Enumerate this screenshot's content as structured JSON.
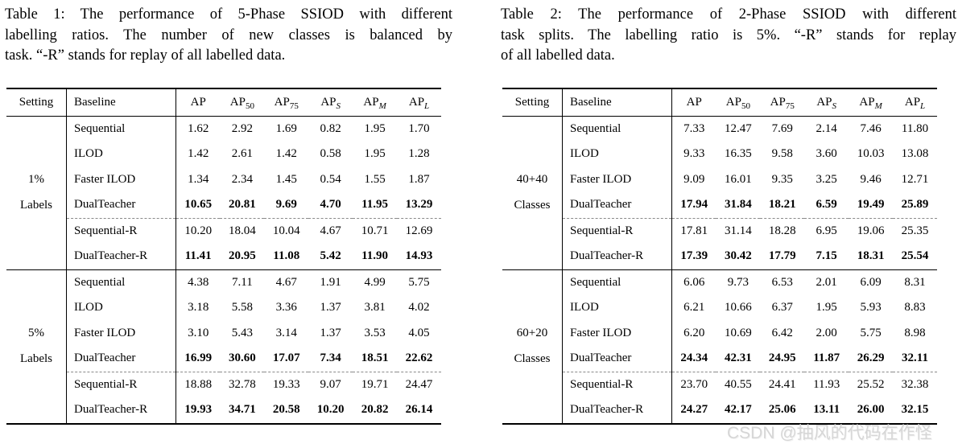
{
  "watermark": "CSDN @抽风的代码在作怪",
  "tables": [
    {
      "caption_lines": [
        "Table 1: The performance of 5-Phase SSIOD with different",
        "labelling ratios. The number of new classes is balanced by",
        "task. “-R” stands for replay of all labelled data."
      ],
      "columns": {
        "setting": "Setting",
        "baseline": "Baseline",
        "metrics": [
          {
            "base": "AP",
            "sub": ""
          },
          {
            "base": "AP",
            "sub": "50"
          },
          {
            "base": "AP",
            "sub": "75"
          },
          {
            "base": "AP",
            "sub": "S"
          },
          {
            "base": "AP",
            "sub": "M"
          },
          {
            "base": "AP",
            "sub": "L"
          }
        ]
      },
      "groups": [
        {
          "setting": [
            "1%",
            "Labels"
          ],
          "rows": [
            {
              "label": "Sequential",
              "bold": false,
              "values": [
                "1.62",
                "2.92",
                "1.69",
                "0.82",
                "1.95",
                "1.70"
              ]
            },
            {
              "label": "ILOD",
              "bold": false,
              "values": [
                "1.42",
                "2.61",
                "1.42",
                "0.58",
                "1.95",
                "1.28"
              ]
            },
            {
              "label": "Faster ILOD",
              "bold": false,
              "values": [
                "1.34",
                "2.34",
                "1.45",
                "0.54",
                "1.55",
                "1.87"
              ]
            },
            {
              "label": "DualTeacher",
              "bold": true,
              "values": [
                "10.65",
                "20.81",
                "9.69",
                "4.70",
                "11.95",
                "13.29"
              ]
            },
            {
              "label": "Sequential-R",
              "bold": false,
              "values": [
                "10.20",
                "18.04",
                "10.04",
                "4.67",
                "10.71",
                "12.69"
              ]
            },
            {
              "label": "DualTeacher-R",
              "bold": true,
              "values": [
                "11.41",
                "20.95",
                "11.08",
                "5.42",
                "11.90",
                "14.93"
              ]
            }
          ]
        },
        {
          "setting": [
            "5%",
            "Labels"
          ],
          "rows": [
            {
              "label": "Sequential",
              "bold": false,
              "values": [
                "4.38",
                "7.11",
                "4.67",
                "1.91",
                "4.99",
                "5.75"
              ]
            },
            {
              "label": "ILOD",
              "bold": false,
              "values": [
                "3.18",
                "5.58",
                "3.36",
                "1.37",
                "3.81",
                "4.02"
              ]
            },
            {
              "label": "Faster ILOD",
              "bold": false,
              "values": [
                "3.10",
                "5.43",
                "3.14",
                "1.37",
                "3.53",
                "4.05"
              ]
            },
            {
              "label": "DualTeacher",
              "bold": true,
              "values": [
                "16.99",
                "30.60",
                "17.07",
                "7.34",
                "18.51",
                "22.62"
              ]
            },
            {
              "label": "Sequential-R",
              "bold": false,
              "values": [
                "18.88",
                "32.78",
                "19.33",
                "9.07",
                "19.71",
                "24.47"
              ]
            },
            {
              "label": "DualTeacher-R",
              "bold": true,
              "values": [
                "19.93",
                "34.71",
                "20.58",
                "10.20",
                "20.82",
                "26.14"
              ]
            }
          ]
        }
      ]
    },
    {
      "caption_lines": [
        "Table 2: The performance of 2-Phase SSIOD with different",
        "task splits. The labelling ratio is 5%. “-R” stands for replay",
        "of all labelled data."
      ],
      "columns": {
        "setting": "Setting",
        "baseline": "Baseline",
        "metrics": [
          {
            "base": "AP",
            "sub": ""
          },
          {
            "base": "AP",
            "sub": "50"
          },
          {
            "base": "AP",
            "sub": "75"
          },
          {
            "base": "AP",
            "sub": "S"
          },
          {
            "base": "AP",
            "sub": "M"
          },
          {
            "base": "AP",
            "sub": "L"
          }
        ]
      },
      "groups": [
        {
          "setting": [
            "40+40",
            "Classes"
          ],
          "rows": [
            {
              "label": "Sequential",
              "bold": false,
              "values": [
                "7.33",
                "12.47",
                "7.69",
                "2.14",
                "7.46",
                "11.80"
              ]
            },
            {
              "label": "ILOD",
              "bold": false,
              "values": [
                "9.33",
                "16.35",
                "9.58",
                "3.60",
                "10.03",
                "13.08"
              ]
            },
            {
              "label": "Faster ILOD",
              "bold": false,
              "values": [
                "9.09",
                "16.01",
                "9.35",
                "3.25",
                "9.46",
                "12.71"
              ]
            },
            {
              "label": "DualTeacher",
              "bold": true,
              "values": [
                "17.94",
                "31.84",
                "18.21",
                "6.59",
                "19.49",
                "25.89"
              ]
            },
            {
              "label": "Sequential-R",
              "bold": false,
              "values": [
                "17.81",
                "31.14",
                "18.28",
                "6.95",
                "19.06",
                "25.35"
              ]
            },
            {
              "label": "DualTeacher-R",
              "bold": true,
              "values": [
                "17.39",
                "30.42",
                "17.79",
                "7.15",
                "18.31",
                "25.54"
              ]
            }
          ]
        },
        {
          "setting": [
            "60+20",
            "Classes"
          ],
          "rows": [
            {
              "label": "Sequential",
              "bold": false,
              "values": [
                "6.06",
                "9.73",
                "6.53",
                "2.01",
                "6.09",
                "8.31"
              ]
            },
            {
              "label": "ILOD",
              "bold": false,
              "values": [
                "6.21",
                "10.66",
                "6.37",
                "1.95",
                "5.93",
                "8.83"
              ]
            },
            {
              "label": "Faster ILOD",
              "bold": false,
              "values": [
                "6.20",
                "10.69",
                "6.42",
                "2.00",
                "5.75",
                "8.98"
              ]
            },
            {
              "label": "DualTeacher",
              "bold": true,
              "values": [
                "24.34",
                "42.31",
                "24.95",
                "11.87",
                "26.29",
                "32.11"
              ]
            },
            {
              "label": "Sequential-R",
              "bold": false,
              "values": [
                "23.70",
                "40.55",
                "24.41",
                "11.93",
                "25.52",
                "32.38"
              ]
            },
            {
              "label": "DualTeacher-R",
              "bold": true,
              "values": [
                "24.27",
                "42.17",
                "25.06",
                "13.11",
                "26.00",
                "32.15"
              ]
            }
          ]
        }
      ]
    }
  ]
}
